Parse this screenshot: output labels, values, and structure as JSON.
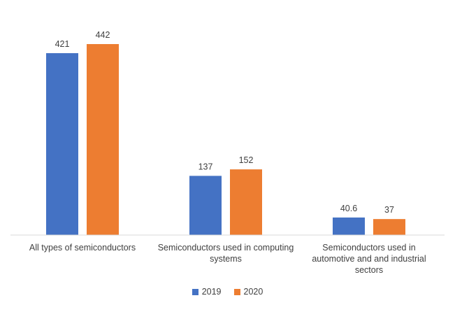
{
  "chart_data": {
    "type": "bar",
    "categories": [
      "All types of semiconductors",
      "Semiconductors used in computing\nsystems",
      "Semiconductors used in\nautomotive and and industrial\nsectors"
    ],
    "series": [
      {
        "name": "2019",
        "values": [
          421,
          137,
          40.6
        ],
        "labels": [
          "421",
          "137",
          "40.6"
        ],
        "color": "#4472C4"
      },
      {
        "name": "2020",
        "values": [
          442,
          152,
          37
        ],
        "labels": [
          "442",
          "152",
          "37"
        ],
        "color": "#ED7D31"
      }
    ],
    "title": "",
    "xlabel": "",
    "ylabel": "",
    "ylim": [
      0,
      442
    ],
    "grid": false,
    "legend_position": "bottom"
  }
}
